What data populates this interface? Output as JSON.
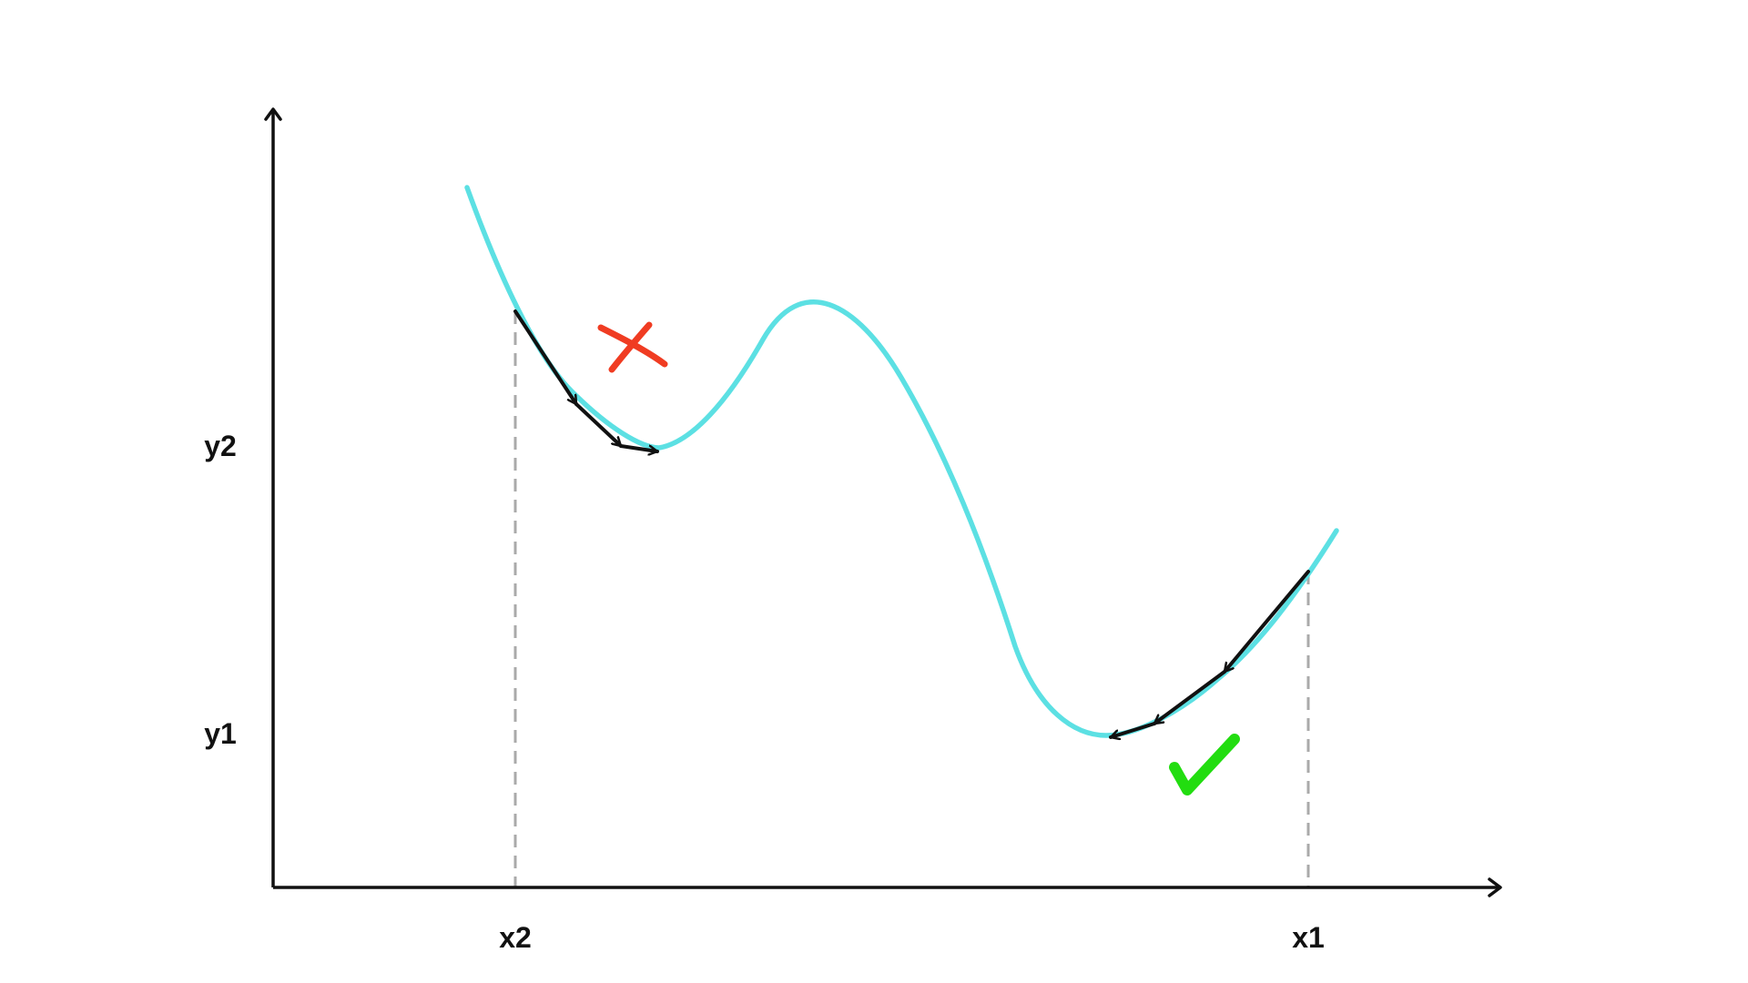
{
  "labels": {
    "x1": "x1",
    "x2": "x2",
    "y1": "y1",
    "y2": "y2"
  },
  "markers": {
    "local_minimum": {
      "icon": "cross-icon",
      "color": "#f03c22"
    },
    "global_minimum": {
      "icon": "checkmark-icon",
      "color": "#22dd10"
    }
  },
  "colors": {
    "curve": "#5ce0e3",
    "axes": "#111111",
    "guides": "#aaaaaa",
    "steps": "#111111"
  }
}
